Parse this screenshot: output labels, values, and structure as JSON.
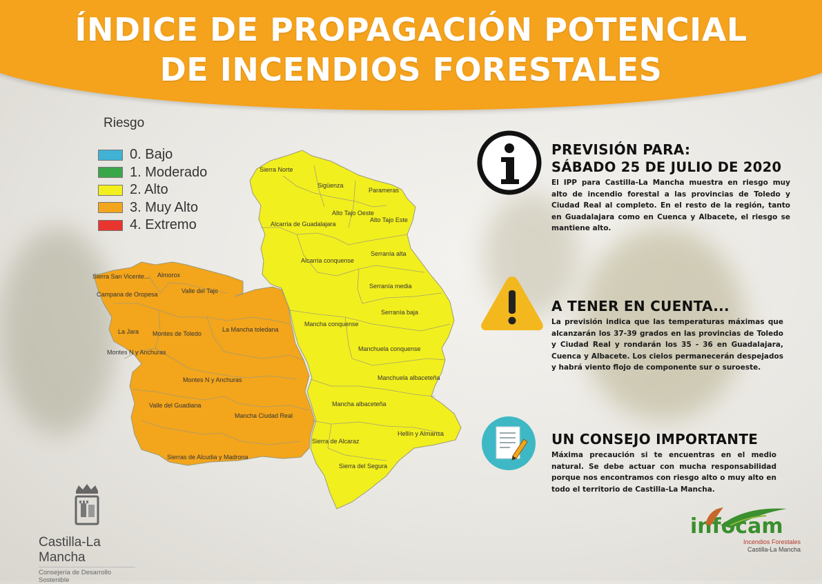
{
  "header": {
    "title_line1": "ÍNDICE DE PROPAGACIÓN POTENCIAL",
    "title_line2": "DE INCENDIOS FORESTALES"
  },
  "legend": {
    "title": "Riesgo",
    "items": [
      {
        "label": "0. Bajo",
        "color": "#3fb2d6"
      },
      {
        "label": "1. Moderado",
        "color": "#3aa64a"
      },
      {
        "label": "2. Alto",
        "color": "#f2ef1e"
      },
      {
        "label": "3. Muy Alto",
        "color": "#f3a51c"
      },
      {
        "label": "4. Extremo",
        "color": "#e8352e"
      }
    ]
  },
  "map": {
    "colors": {
      "alto": "#f2ef1e",
      "muy_alto": "#f3a51c",
      "border": "#9a9a7a"
    },
    "zones_alto": [
      "Sierra Norte",
      "Sigüenza",
      "Parameras",
      "Alto Tajo Oeste",
      "Alto Tajo Este",
      "Alcarria de Guadalajara",
      "Serranía alta",
      "Alcarria conquense",
      "Serranía media",
      "Serranía baja",
      "Mancha conquense",
      "Manchuela conquense",
      "Manchuela albaceteña",
      "Mancha albaceteña",
      "Hellín y Almansa",
      "Sierra de Alcaraz",
      "Sierra del Segura"
    ],
    "zones_muy_alto": [
      "Sierra San Vicente",
      "Almorox",
      "Campana de Oropesa",
      "Valle del Tajo",
      "La Jara",
      "Montes de Toledo",
      "La Mancha toledana",
      "Montes N y Anchuras",
      "Montes N y Anchuras",
      "Valle del Guadiana",
      "Mancha Ciudad Real",
      "Sierras de Alcudia y Madrona"
    ]
  },
  "blocks": [
    {
      "title": "PREVISIÓN PARA:",
      "subtitle": "SÁBADO 25 DE JULIO DE 2020",
      "icon": "info-icon",
      "text": "El IPP para Castilla-La Mancha muestra en riesgo muy alto de incendio forestal a las provincias de Toledo y Ciudad Real al completo. En el resto de la región, tanto en Guadalajara como en Cuenca y Albacete, el riesgo se mantiene alto."
    },
    {
      "title": "A TENER EN CUENTA...",
      "icon": "warning-icon",
      "text": "La previsión indica que las temperaturas máximas que alcanzarán los 37-39 grados en las provincias de Toledo y Ciudad Real y rondarán los 35 - 36 en Guadalajara, Cuenca y Albacete. Los cielos permanecerán despejados y habrá viento flojo de componente sur o suroeste."
    },
    {
      "title": "UN CONSEJO IMPORTANTE",
      "icon": "notepad-icon",
      "text": "Máxima precaución si te encuentras en el medio natural. Se debe actuar con mucha responsabilidad porque nos encontramos con riesgo alto o muy alto en todo el territorio de Castilla-La Mancha."
    }
  ],
  "footer": {
    "jccm_name": "Castilla-La Mancha",
    "jccm_sub": "Consejería de Desarrollo Sostenible",
    "infocam_name": "infocam",
    "infocam_sub1": "Incendios Forestales",
    "infocam_sub2": "Castilla-La Mancha"
  }
}
